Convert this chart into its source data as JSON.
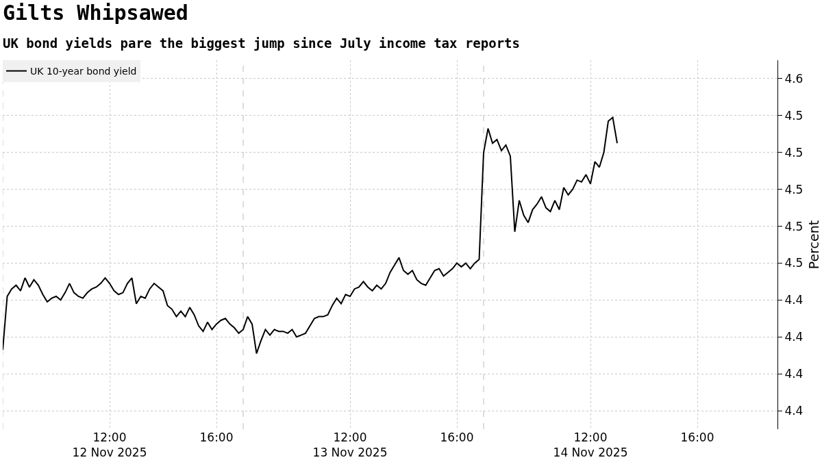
{
  "chart_data": {
    "type": "line",
    "title": "Gilts Whipsawed",
    "subtitle": "UK bond yields pare the biggest jump since July income tax reports",
    "ylabel": "Percent",
    "categories": [
      null,
      null,
      null,
      null,
      null,
      null,
      null,
      null,
      null,
      null,
      null,
      null,
      null,
      null,
      null,
      null,
      null,
      null,
      null,
      null,
      null,
      null,
      null,
      null,
      "12:00\n12 Nov 2025",
      null,
      null,
      null,
      null,
      null,
      null,
      null,
      null,
      null,
      null,
      null,
      null,
      null,
      null,
      null,
      null,
      null,
      null,
      null,
      null,
      null,
      null,
      null,
      "16:00",
      null,
      null,
      null,
      null,
      null,
      null,
      null,
      null,
      null,
      null,
      null,
      null,
      null,
      null,
      null,
      null,
      null,
      null,
      null,
      null,
      null,
      null,
      null,
      null,
      null,
      null,
      null,
      null,
      null,
      "12:00\n13 Nov 2025",
      null,
      null,
      null,
      null,
      null,
      null,
      null,
      null,
      null,
      null,
      null,
      null,
      null,
      null,
      null,
      null,
      null,
      null,
      null,
      null,
      null,
      null,
      null,
      "16:00",
      null,
      null,
      null,
      null,
      null,
      null,
      null,
      null,
      null,
      null,
      null,
      null,
      null,
      null,
      null,
      null,
      null,
      null,
      null,
      null,
      null,
      null,
      null,
      null,
      null,
      null,
      null,
      null,
      null,
      "12:00\n14 Nov 2025",
      null,
      null,
      null,
      null,
      null,
      null,
      null,
      null,
      null,
      null,
      null,
      null,
      null,
      null,
      null,
      null,
      null,
      null,
      null,
      null,
      null,
      null,
      null,
      "16:00",
      null,
      null,
      null,
      null,
      null,
      null,
      null,
      null,
      null,
      null,
      null,
      null,
      null,
      null,
      null,
      null,
      null,
      null
    ],
    "series": [
      {
        "name": "UK 10-year bond yield",
        "color": "#000000",
        "values": [
          4.413,
          4.442,
          4.446,
          4.448,
          4.445,
          4.452,
          4.447,
          4.451,
          4.448,
          4.443,
          4.439,
          4.441,
          4.442,
          4.44,
          4.444,
          4.449,
          4.444,
          4.442,
          4.441,
          4.444,
          4.446,
          4.447,
          4.449,
          4.452,
          4.449,
          4.445,
          4.443,
          4.444,
          4.449,
          4.452,
          4.438,
          4.442,
          4.441,
          4.446,
          4.449,
          4.447,
          4.445,
          4.437,
          4.435,
          4.431,
          4.434,
          4.431,
          4.436,
          4.432,
          4.426,
          4.423,
          4.428,
          4.424,
          4.427,
          4.429,
          4.43,
          4.427,
          4.425,
          4.422,
          4.424,
          4.431,
          4.427,
          4.411,
          4.418,
          4.424,
          4.421,
          4.424,
          4.423,
          4.423,
          4.422,
          4.424,
          4.42,
          4.421,
          4.422,
          4.426,
          4.43,
          4.431,
          4.431,
          4.432,
          4.437,
          4.441,
          4.438,
          4.443,
          4.442,
          4.446,
          4.447,
          4.45,
          4.447,
          4.445,
          4.448,
          4.446,
          4.449,
          4.455,
          4.459,
          4.463,
          4.456,
          4.454,
          4.456,
          4.451,
          4.449,
          4.448,
          4.452,
          4.456,
          4.457,
          4.453,
          4.455,
          4.457,
          4.46,
          4.458,
          4.46,
          4.457,
          4.46,
          4.462,
          4.52,
          4.533,
          4.525,
          4.527,
          4.521,
          4.524,
          4.518,
          4.477,
          4.494,
          4.486,
          4.482,
          4.489,
          4.492,
          4.496,
          4.49,
          4.488,
          4.494,
          4.489,
          4.501,
          4.497,
          4.5,
          4.505,
          4.504,
          4.508,
          4.503,
          4.515,
          4.512,
          4.52,
          4.537,
          4.539,
          4.525,
          null,
          null,
          null,
          null,
          null,
          null,
          null,
          null,
          null,
          null,
          null,
          null,
          null,
          null,
          null,
          null,
          null,
          null,
          null,
          null,
          null,
          null,
          null,
          null,
          null,
          null,
          null,
          null,
          null,
          null,
          null,
          null,
          null,
          null,
          null,
          null
        ]
      }
    ],
    "ylim": [
      4.37,
      4.57
    ],
    "yticks": [
      {
        "value": 4.38,
        "label": "4.4"
      },
      {
        "value": 4.4,
        "label": "4.4"
      },
      {
        "value": 4.42,
        "label": "4.4"
      },
      {
        "value": 4.44,
        "label": "4.4"
      },
      {
        "value": 4.46,
        "label": "4.5"
      },
      {
        "value": 4.48,
        "label": "4.5"
      },
      {
        "value": 4.5,
        "label": "4.5"
      },
      {
        "value": 4.52,
        "label": "4.5"
      },
      {
        "value": 4.54,
        "label": "4.5"
      },
      {
        "value": 4.56,
        "label": "4.6"
      }
    ],
    "grid": true,
    "legend": "top left",
    "marker": "none",
    "line_style": "solid"
  }
}
